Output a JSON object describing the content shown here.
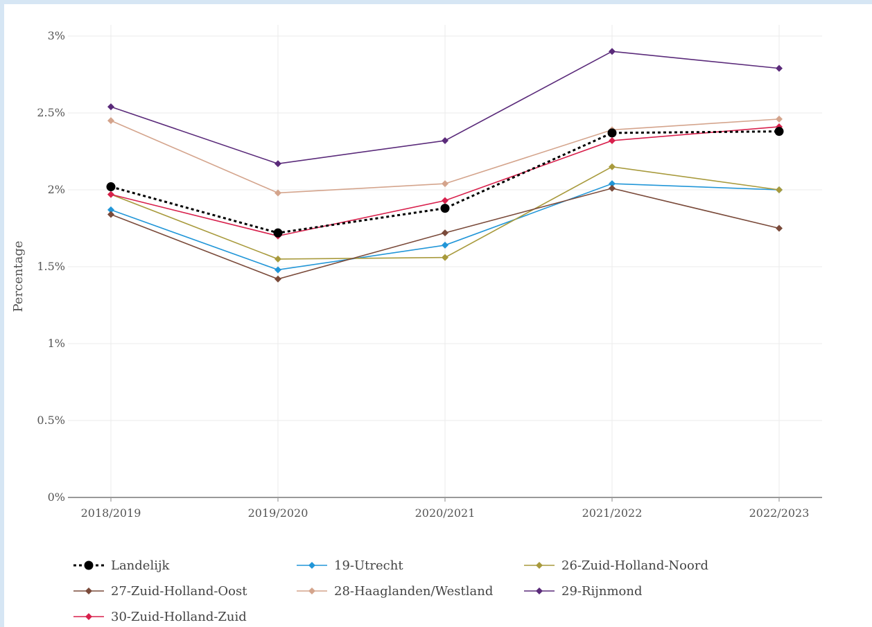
{
  "chart_data": {
    "type": "line",
    "ylabel": "Percentage",
    "xlabel": "",
    "categories": [
      "2018/2019",
      "2019/2020",
      "2020/2021",
      "2021/2022",
      "2022/2023"
    ],
    "ylim": [
      0,
      3
    ],
    "yticks": [
      0,
      0.5,
      1,
      1.5,
      2,
      2.5,
      3
    ],
    "ytick_labels": [
      "0%",
      "0.5%",
      "1%",
      "1.5%",
      "2%",
      "2.5%",
      "3%"
    ],
    "grid": true,
    "legend_position": "bottom",
    "series": [
      {
        "name": "Landelijk",
        "color": "#000000",
        "style": "dotted",
        "marker": "circle",
        "values": [
          2.02,
          1.72,
          1.88,
          2.37,
          2.38
        ]
      },
      {
        "name": "19-Utrecht",
        "color": "#2196d8",
        "style": "solid",
        "marker": "diamond",
        "values": [
          1.87,
          1.48,
          1.64,
          2.04,
          2.0
        ]
      },
      {
        "name": "26-Zuid-Holland-Noord",
        "color": "#a89a3c",
        "style": "solid",
        "marker": "diamond",
        "values": [
          1.97,
          1.55,
          1.56,
          2.15,
          2.0
        ]
      },
      {
        "name": "27-Zuid-Holland-Oost",
        "color": "#7a4a3a",
        "style": "solid",
        "marker": "diamond",
        "values": [
          1.84,
          1.42,
          1.72,
          2.01,
          1.75
        ]
      },
      {
        "name": "28-Haaglanden/Westland",
        "color": "#d4a48c",
        "style": "solid",
        "marker": "diamond",
        "values": [
          2.45,
          1.98,
          2.04,
          2.39,
          2.46
        ]
      },
      {
        "name": "29-Rijnmond",
        "color": "#5a2a7a",
        "style": "solid",
        "marker": "diamond",
        "values": [
          2.54,
          2.17,
          2.32,
          2.9,
          2.79
        ]
      },
      {
        "name": "30-Zuid-Holland-Zuid",
        "color": "#d8204c",
        "style": "solid",
        "marker": "diamond",
        "values": [
          1.97,
          1.7,
          1.93,
          2.32,
          2.41
        ]
      }
    ]
  }
}
